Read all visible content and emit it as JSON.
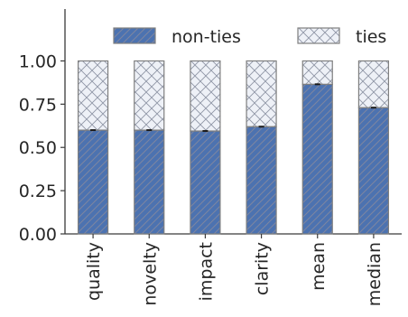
{
  "chart_data": {
    "type": "bar",
    "stacked": true,
    "categories": [
      "quality",
      "novelty",
      "impact",
      "clarity",
      "mean",
      "median"
    ],
    "series": [
      {
        "name": "non-ties",
        "values": [
          0.6,
          0.6,
          0.595,
          0.62,
          0.865,
          0.73
        ],
        "color": "#4c72b0",
        "hatch": "diagonal"
      },
      {
        "name": "ties",
        "values": [
          0.4,
          0.4,
          0.405,
          0.38,
          0.135,
          0.27
        ],
        "color": "#eef1f7",
        "hatch": "cross"
      }
    ],
    "error": [
      0.004,
      0.004,
      0.004,
      0.004,
      0.004,
      0.004
    ],
    "ylim": [
      0,
      1.3
    ],
    "yticks": [
      "0.00",
      "0.25",
      "0.50",
      "0.75",
      "1.00"
    ],
    "xlabel": "",
    "ylabel": "",
    "title": "",
    "grid": false,
    "legend_position": "top"
  }
}
